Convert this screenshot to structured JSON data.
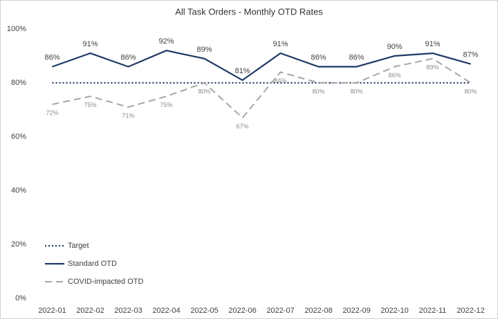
{
  "chart_data": {
    "type": "line",
    "title": "All Task Orders - Monthly OTD Rates",
    "categories": [
      "2022-01",
      "2022-02",
      "2022-03",
      "2022-04",
      "2022-05",
      "2022-06",
      "2022-07",
      "2022-08",
      "2022-09",
      "2022-10",
      "2022-11",
      "2022-12"
    ],
    "series": [
      {
        "name": "Target",
        "color": "#1f3864",
        "style": "dotted",
        "values": [
          80,
          80,
          80,
          80,
          80,
          80,
          80,
          80,
          80,
          80,
          80,
          80
        ]
      },
      {
        "name": "Standard OTD",
        "color": "#1f3864",
        "style": "solid",
        "values": [
          86,
          91,
          86,
          92,
          89,
          81,
          91,
          86,
          86,
          90,
          91,
          87
        ],
        "value_labels": [
          "86%",
          "91%",
          "86%",
          "92%",
          "89%",
          "81%",
          "91%",
          "86%",
          "86%",
          "90%",
          "91%",
          "87%"
        ]
      },
      {
        "name": "COVID-impacted OTD",
        "color": "#a6a6a6",
        "style": "dashed",
        "values": [
          72,
          75,
          71,
          75,
          80,
          67,
          84,
          80,
          80,
          86,
          89,
          80
        ],
        "value_labels": [
          "72%",
          "75%",
          "71%",
          "75%",
          "80%",
          "67%",
          "84%",
          "80%",
          "80%",
          "86%",
          "89%",
          "80%"
        ]
      }
    ],
    "ylim": [
      0,
      100
    ],
    "yticks": [
      {
        "value": 0,
        "label": "0%"
      },
      {
        "value": 20,
        "label": "20%"
      },
      {
        "value": 40,
        "label": "40%"
      },
      {
        "value": 60,
        "label": "60%"
      },
      {
        "value": 80,
        "label": "80%"
      },
      {
        "value": 100,
        "label": "100%"
      }
    ],
    "grid": false,
    "legend": "lower left"
  }
}
